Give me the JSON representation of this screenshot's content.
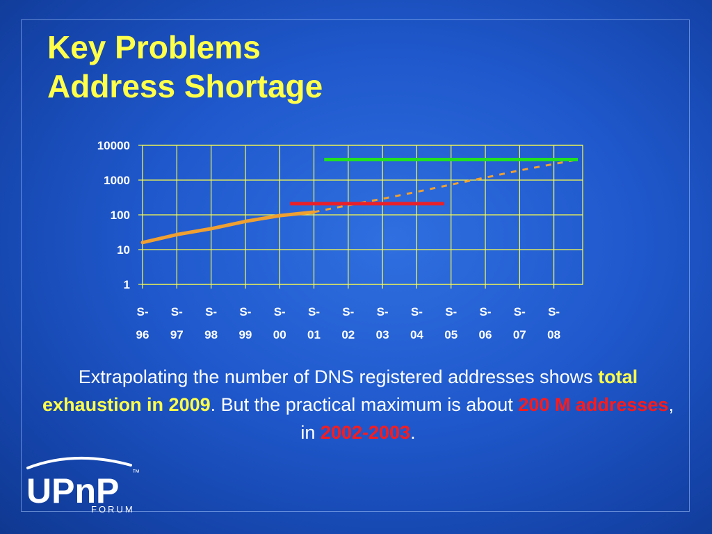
{
  "slide": {
    "title_line1": "Key Problems",
    "title_line2": "Address Shortage"
  },
  "caption": {
    "part1": "Extrapolating the number of DNS registered addresses shows ",
    "highlight1": "total exhaustion in 2009",
    "part2": ". But the practical maximum is about ",
    "highlight2": "200 M addresses",
    "part3": ", in ",
    "highlight3": "2002-2003",
    "part4": "."
  },
  "logo": {
    "text": "UPnP",
    "trademark": "™",
    "sub": "FORUM"
  },
  "colors": {
    "title": "#ffff4a",
    "grid": "#ffff4a",
    "actual_line": "#f0a030",
    "practical_max_line": "#e8202a",
    "exhaustion_line": "#22e022",
    "caption_highlight": "#ffff4a",
    "caption_alert": "#ff1a1a"
  },
  "chart_data": {
    "type": "line",
    "y_scale": "log",
    "ylim": [
      1,
      10000
    ],
    "y_ticks": [
      "1",
      "10",
      "100",
      "1000",
      "10000"
    ],
    "categories": [
      "S-96",
      "S-97",
      "S-98",
      "S-99",
      "S-00",
      "S-01",
      "S-02",
      "S-03",
      "S-04",
      "S-05",
      "S-06",
      "S-07",
      "S-08"
    ],
    "tick_labels": [
      [
        "S-",
        "96"
      ],
      [
        "S-",
        "97"
      ],
      [
        "S-",
        "98"
      ],
      [
        "S-",
        "99"
      ],
      [
        "S-",
        "00"
      ],
      [
        "S-",
        "01"
      ],
      [
        "S-",
        "02"
      ],
      [
        "S-",
        "03"
      ],
      [
        "S-",
        "04"
      ],
      [
        "S-",
        "05"
      ],
      [
        "S-",
        "06"
      ],
      [
        "S-",
        "07"
      ],
      [
        "S-",
        "08"
      ]
    ],
    "x_range": [
      1996,
      2008.7
    ],
    "series": [
      {
        "style": "solid",
        "x": [
          1996,
          1997,
          1998,
          1999,
          2000,
          2001
        ],
        "y": [
          16,
          27,
          40,
          65,
          95,
          120
        ]
      },
      {
        "style": "dashed",
        "x": [
          2001,
          2002,
          2003,
          2004,
          2005,
          2006,
          2007,
          2008.7
        ],
        "y": [
          120,
          190,
          290,
          460,
          740,
          1180,
          1900,
          3900
        ]
      }
    ],
    "reference_lines": [
      {
        "y": 210,
        "x_start": 2000.3,
        "x_end": 2004.8,
        "meaning": "practical maximum"
      },
      {
        "y": 3900,
        "x_start": 2001.3,
        "x_end": 2008.7,
        "meaning": "total exhaustion"
      }
    ],
    "grid": true
  }
}
